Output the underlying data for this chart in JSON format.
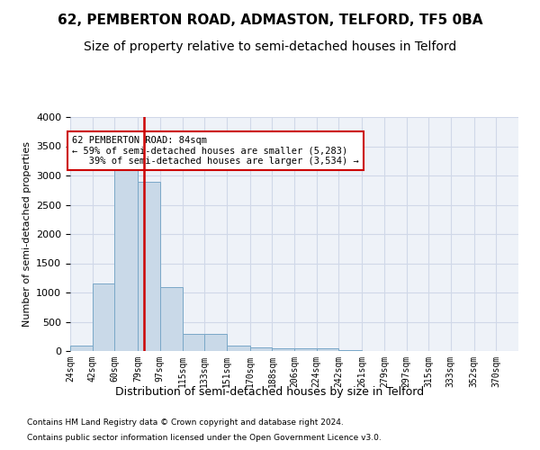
{
  "title": "62, PEMBERTON ROAD, ADMASTON, TELFORD, TF5 0BA",
  "subtitle": "Size of property relative to semi-detached houses in Telford",
  "xlabel": "Distribution of semi-detached houses by size in Telford",
  "ylabel": "Number of semi-detached properties",
  "footnote1": "Contains HM Land Registry data © Crown copyright and database right 2024.",
  "footnote2": "Contains public sector information licensed under the Open Government Licence v3.0.",
  "property_size": 84,
  "annotation_title": "62 PEMBERTON ROAD: 84sqm",
  "annotation_line1": "← 59% of semi-detached houses are smaller (5,283)",
  "annotation_line2": "   39% of semi-detached houses are larger (3,534) →",
  "bar_color": "#c9d9e8",
  "bar_edge_color": "#7aa8c8",
  "marker_color": "#cc0000",
  "annotation_box_edge": "#cc0000",
  "bins": [
    24,
    42,
    60,
    79,
    97,
    115,
    133,
    151,
    170,
    188,
    206,
    224,
    242,
    261,
    279,
    297,
    315,
    333,
    352,
    370,
    388
  ],
  "bin_labels": [
    "24sqm",
    "42sqm",
    "60sqm",
    "79sqm",
    "97sqm",
    "115sqm",
    "133sqm",
    "151sqm",
    "170sqm",
    "188sqm",
    "206sqm",
    "224sqm",
    "242sqm",
    "261sqm",
    "279sqm",
    "297sqm",
    "315sqm",
    "333sqm",
    "352sqm",
    "370sqm"
  ],
  "counts": [
    100,
    1150,
    3300,
    2900,
    1100,
    300,
    300,
    100,
    60,
    50,
    50,
    40,
    10,
    5,
    5,
    5,
    3,
    2,
    2,
    1
  ],
  "ylim": [
    0,
    4000
  ],
  "yticks": [
    0,
    500,
    1000,
    1500,
    2000,
    2500,
    3000,
    3500,
    4000
  ],
  "grid_color": "#d0d8e8",
  "background_color": "#eef2f8",
  "fig_background": "#ffffff",
  "title_fontsize": 11,
  "subtitle_fontsize": 10
}
